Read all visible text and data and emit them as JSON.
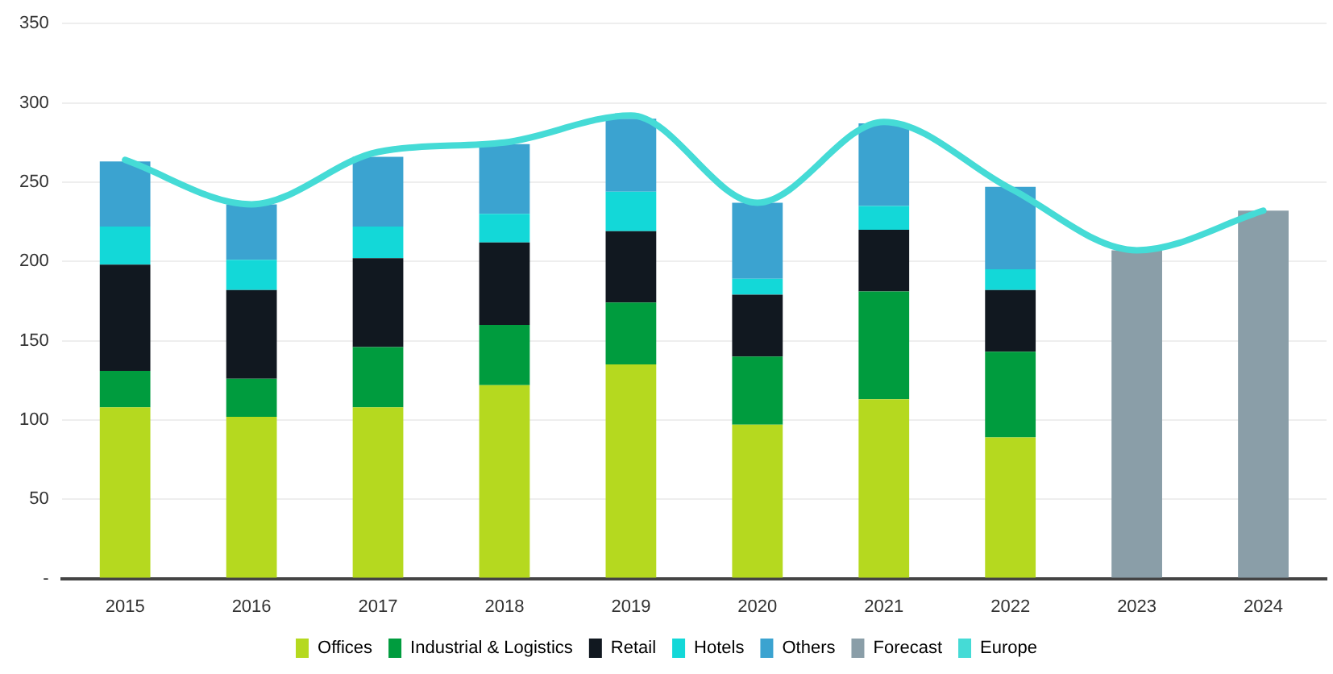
{
  "chart_data": {
    "type": "bar",
    "stacked": true,
    "categories": [
      "2015",
      "2016",
      "2017",
      "2018",
      "2019",
      "2020",
      "2021",
      "2022",
      "2023",
      "2024"
    ],
    "ylim": [
      0,
      350
    ],
    "yticks": [
      {
        "value": 0,
        "label": "-"
      },
      50,
      100,
      150,
      200,
      250,
      300,
      350
    ],
    "grid": "y",
    "legend": "bottom",
    "marker": "none",
    "series": [
      {
        "name": "Offices",
        "color": "#b5d91f",
        "values": [
          108,
          102,
          108,
          122,
          135,
          97,
          113,
          89,
          null,
          null
        ]
      },
      {
        "name": "Industrial & Logistics",
        "color": "#009c3e",
        "values": [
          23,
          24,
          38,
          38,
          39,
          43,
          68,
          54,
          null,
          null
        ]
      },
      {
        "name": "Retail",
        "color": "#111820",
        "values": [
          67,
          56,
          56,
          52,
          45,
          39,
          39,
          39,
          null,
          null
        ]
      },
      {
        "name": "Hotels",
        "color": "#13d8d8",
        "values": [
          24,
          19,
          20,
          18,
          25,
          10,
          15,
          13,
          null,
          null
        ]
      },
      {
        "name": "Others",
        "color": "#3ba3d0",
        "values": [
          41,
          35,
          44,
          44,
          46,
          48,
          52,
          52,
          null,
          null
        ]
      },
      {
        "name": "Forecast",
        "color": "#8a9ea8",
        "values": [
          null,
          null,
          null,
          null,
          null,
          null,
          null,
          null,
          207,
          232
        ]
      },
      {
        "name": "Europe",
        "type": "line",
        "color": "#45dbd6",
        "values": [
          264,
          236,
          269,
          275,
          292,
          237,
          288,
          246,
          207,
          232
        ]
      }
    ]
  }
}
